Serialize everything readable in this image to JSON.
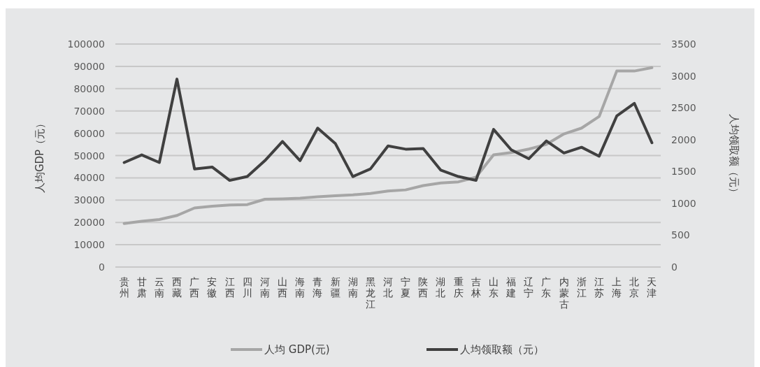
{
  "chart_data": {
    "type": "line",
    "ylabel": "人均GDP（元）",
    "y2label": "人均领取额（元）",
    "categories": [
      "贵州",
      "甘肃",
      "云南",
      "西藏",
      "广西",
      "安徽",
      "江西",
      "四川",
      "河南",
      "山西",
      "海南",
      "青海",
      "新疆",
      "湖南",
      "黑龙江",
      "河北",
      "宁夏",
      "陕西",
      "湖北",
      "重庆",
      "吉林",
      "山东",
      "福建",
      "辽宁",
      "广东",
      "内蒙古",
      "浙江",
      "江苏",
      "上海",
      "北京",
      "天津"
    ],
    "series": [
      {
        "name": "人均 GDP(元)",
        "color": "#a6a6a6",
        "values": [
          19500,
          20500,
          21300,
          23100,
          26500,
          27300,
          27800,
          28000,
          30400,
          30600,
          30900,
          31500,
          32000,
          32400,
          33000,
          34100,
          34600,
          36500,
          37700,
          38200,
          40300,
          50300,
          51300,
          52900,
          55000,
          59700,
          62300,
          67500,
          87900,
          87900,
          89400
        ]
      },
      {
        "name": "人均领取额（元）",
        "color": "#404040",
        "axis": "y2",
        "values": [
          1640,
          1760,
          1640,
          2950,
          1540,
          1570,
          1360,
          1420,
          1670,
          1970,
          1670,
          2180,
          1940,
          1420,
          1540,
          1900,
          1850,
          1860,
          1520,
          1420,
          1360,
          2160,
          1840,
          1700,
          1980,
          1790,
          1880,
          1740,
          2370,
          2570,
          1950
        ]
      }
    ],
    "ylim": [
      0,
      100000
    ],
    "yticks": [
      0,
      10000,
      20000,
      30000,
      40000,
      50000,
      60000,
      70000,
      80000,
      90000,
      100000
    ],
    "y2lim": [
      0,
      3500
    ],
    "y2ticks": [
      0,
      500,
      1000,
      1500,
      2000,
      2500,
      3000,
      3500
    ],
    "grid": "y",
    "legend": "bottom"
  }
}
